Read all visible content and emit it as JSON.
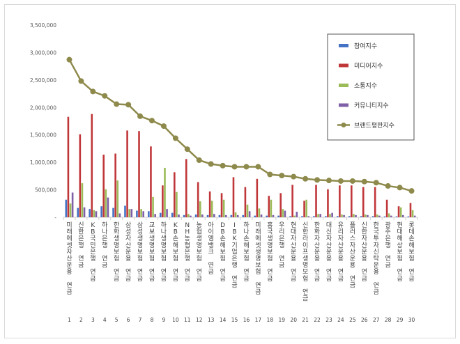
{
  "chart_data": {
    "type": "bar",
    "ylim": [
      0,
      3500000
    ],
    "yticks": [
      "-",
      "500,000",
      "1,000,000",
      "1,500,000",
      "2,000,000",
      "2,500,000",
      "3,000,000",
      "3,500,000"
    ],
    "grid": false,
    "legend_position": "top-right",
    "categories": [
      "미래에셋자산운용 연금",
      "신한은행 연금",
      "KB국민은행 연금",
      "하나은행 연금",
      "한화생명보험 연금",
      "삼성자산운용 연금",
      "삼성생명보험 연금",
      "교보생명보험 연금",
      "하나생명보험 연금",
      "KB손해보험 연금",
      "NH농협은행 연금",
      "농협생명보험 연금",
      "아이엠뱅크 연금",
      "DB손해보험 연금",
      "IBK기업은행 연금",
      "하나손해보험 연금",
      "미래에셋생명보험 연금",
      "흥국생명보험 연금",
      "우리은행 연금",
      "현대자산운용 연금",
      "신한라이프생명보험 연금",
      "한화자산운용 연금",
      "대신자산운용 연금",
      "유리자산운용 연금",
      "플러스자산운용 연금",
      "신한자산운용 연금",
      "한국투자신탁운용 연금",
      "광주은행 연금",
      "현대해상보험 연금",
      "롯데손해보험 연금"
    ],
    "ranks": [
      "1",
      "2",
      "3",
      "4",
      "5",
      "6",
      "7",
      "8",
      "9",
      "10",
      "11",
      "12",
      "13",
      "14",
      "15",
      "16",
      "17",
      "18",
      "19",
      "20",
      "21",
      "22",
      "23",
      "24",
      "25",
      "26",
      "27",
      "28",
      "29",
      "30"
    ],
    "series": [
      {
        "name": "참여지수",
        "color": "#4472c4",
        "kind": "bar",
        "values": [
          320000,
          170000,
          150000,
          200000,
          170000,
          210000,
          120000,
          110000,
          80000,
          80000,
          40000,
          50000,
          40000,
          40000,
          40000,
          40000,
          30000,
          30000,
          30000,
          20000,
          20000,
          20000,
          20000,
          20000,
          20000,
          20000,
          20000,
          15000,
          15000,
          15000
        ]
      },
      {
        "name": "미디어지수",
        "color": "#c0373a",
        "kind": "bar",
        "values": [
          1830000,
          1510000,
          1880000,
          1140000,
          1160000,
          1580000,
          1570000,
          1290000,
          580000,
          820000,
          1060000,
          640000,
          470000,
          440000,
          730000,
          550000,
          700000,
          390000,
          440000,
          590000,
          300000,
          590000,
          510000,
          580000,
          580000,
          550000,
          550000,
          320000,
          200000,
          260000
        ]
      },
      {
        "name": "소통지수",
        "color": "#9bbb59",
        "kind": "bar",
        "values": [
          250000,
          620000,
          130000,
          510000,
          670000,
          150000,
          150000,
          370000,
          900000,
          460000,
          60000,
          290000,
          300000,
          320000,
          90000,
          230000,
          160000,
          320000,
          150000,
          30000,
          320000,
          60000,
          60000,
          50000,
          60000,
          50000,
          50000,
          70000,
          180000,
          130000
        ]
      },
      {
        "name": "커뮤니티지수",
        "color": "#7f5fa8",
        "kind": "bar",
        "values": [
          450000,
          180000,
          110000,
          360000,
          70000,
          150000,
          110000,
          60000,
          150000,
          50000,
          30000,
          50000,
          60000,
          40000,
          40000,
          110000,
          50000,
          40000,
          120000,
          100000,
          20000,
          60000,
          80000,
          40000,
          40000,
          40000,
          30000,
          30000,
          40000,
          30000
        ]
      },
      {
        "name": "브랜드평판지수",
        "color": "#8e8a4c",
        "kind": "line",
        "values": [
          2870000,
          2480000,
          2290000,
          2210000,
          2060000,
          2050000,
          1840000,
          1760000,
          1660000,
          1440000,
          1240000,
          1040000,
          970000,
          940000,
          920000,
          920000,
          920000,
          780000,
          760000,
          740000,
          700000,
          680000,
          670000,
          660000,
          660000,
          650000,
          630000,
          570000,
          540000,
          480000
        ]
      }
    ]
  }
}
